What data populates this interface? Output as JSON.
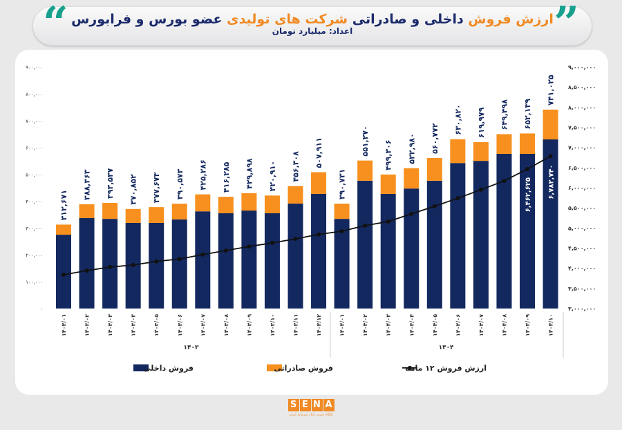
{
  "header": {
    "title_parts": [
      "ارزش فروش",
      " داخلی و صادراتی ",
      "شرکت های تولیدی",
      " عضو بورس و فرابورس"
    ],
    "subtitle": "اعداد: میلیارد تومان"
  },
  "logo": {
    "text": "SENA",
    "subtitle": "پایگاه خبری بازار سرمایه ایران"
  },
  "chart_data": {
    "type": "bar",
    "stacked": true,
    "categories": [
      "۱۴۰۳/۰۱",
      "۱۴۰۳/۰۲",
      "۱۴۰۳/۰۳",
      "۱۴۰۳/۰۴",
      "۱۴۰۳/۰۵",
      "۱۴۰۳/۰۶",
      "۱۴۰۳/۰۷",
      "۱۴۰۳/۰۸",
      "۱۴۰۳/۰۹",
      "۱۴۰۳/۱۰",
      "۱۴۰۳/۱۱",
      "۱۴۰۳/۱۲",
      "۱۴۰۴/۰۱",
      "۱۴۰۴/۰۲",
      "۱۴۰۴/۰۳",
      "۱۴۰۴/۰۴",
      "۱۴۰۴/۰۵",
      "۱۴۰۴/۰۶",
      "۱۴۰۴/۰۷",
      "۱۴۰۴/۰۸",
      "۱۴۰۴/۰۹",
      "۱۴۰۴/۱۰"
    ],
    "year_groups": [
      {
        "label": "۱۴۰۳",
        "count": 12
      },
      {
        "label": "۱۴۰۴",
        "count": 10
      }
    ],
    "totals": [
      312671,
      388363,
      393537,
      370852,
      377673,
      390573,
      425286,
      416285,
      429898,
      420910,
      456308,
      507911,
      390731,
      551270,
      499306,
      522980,
      560772,
      630820,
      619979,
      649498,
      652139,
      741025
    ],
    "series": [
      {
        "name": "فروش داخلی",
        "axis": "left",
        "color": "#13285f",
        "values": [
          275000,
          337000,
          334000,
          319000,
          319000,
          332000,
          362000,
          355000,
          365000,
          355000,
          391000,
          427000,
          334000,
          476000,
          427000,
          447000,
          476000,
          542000,
          550000,
          576000,
          576000,
          630000
        ]
      },
      {
        "name": "فروش صادراتی",
        "axis": "left",
        "color": "#f7901e",
        "values": [
          37671,
          51363,
          59537,
          51852,
          58673,
          58573,
          63286,
          61285,
          64898,
          65910,
          65308,
          80911,
          56731,
          75270,
          72306,
          75980,
          84772,
          88820,
          69979,
          73498,
          76139,
          111025
        ]
      },
      {
        "name": "ارزش فروش ۱۲ ماهه",
        "axis": "right",
        "type": "line",
        "color": "#111111",
        "values": [
          3840000,
          3940000,
          4030000,
          4080000,
          4170000,
          4230000,
          4340000,
          4440000,
          4540000,
          4630000,
          4730000,
          4840000,
          4920000,
          5060000,
          5160000,
          5350000,
          5540000,
          5740000,
          5950000,
          6170000,
          6462625,
          6782740
        ],
        "labeled_points": [
          20,
          21
        ]
      }
    ],
    "ylim_left": [
      0,
      900000
    ],
    "ytick_step_left": 100000,
    "ylim_right": [
      3000000,
      9000000
    ],
    "ytick_step_right": 500000,
    "grid": false,
    "legend": "bottom"
  }
}
